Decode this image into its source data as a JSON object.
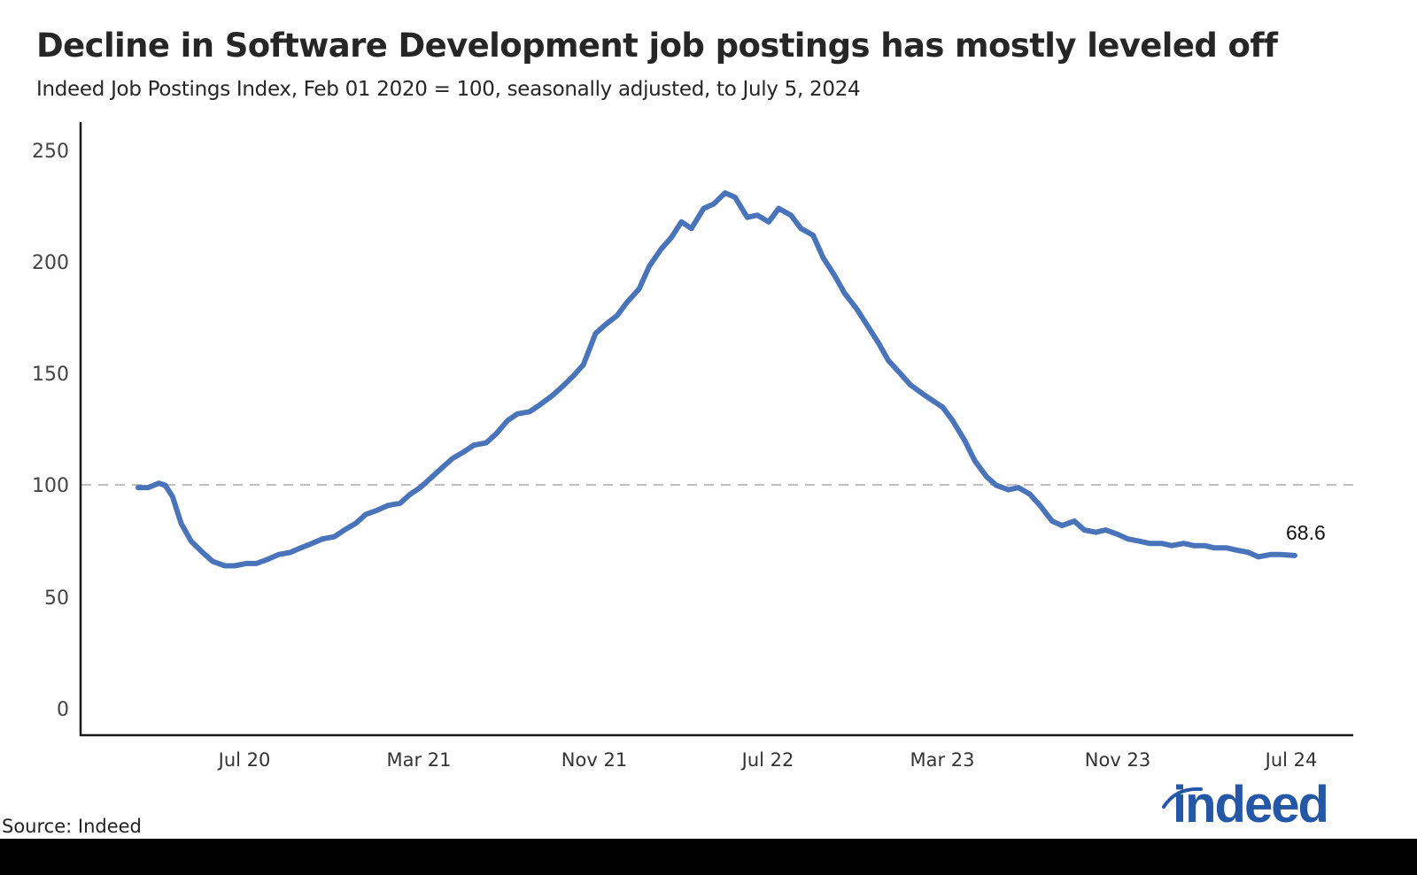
{
  "header": {
    "title": "Decline in Software Development job postings has mostly leveled off",
    "subtitle": "Indeed Job Postings Index, Feb 01 2020 = 100, seasonally adjusted, to July 5, 2024"
  },
  "footer": {
    "source": "Source: Indeed",
    "logo_text": "indeed"
  },
  "colors": {
    "line": "#4a74b9",
    "reference_line": "#c0c0c0",
    "axis": "#1a1a1a",
    "logo": "#2557a7"
  },
  "chart_data": {
    "type": "line",
    "title": "Decline in Software Development job postings has mostly leveled off",
    "subtitle": "Indeed Job Postings Index, Feb 01 2020 = 100, seasonally adjusted, to July 5, 2024",
    "xlabel": "",
    "ylabel": "",
    "ylim": [
      0,
      250
    ],
    "yticks": [
      0,
      50,
      100,
      150,
      200,
      250
    ],
    "xtick_labels": [
      "Jul 20",
      "Mar 21",
      "Nov 21",
      "Jul 22",
      "Mar 23",
      "Nov 23",
      "Jul 24"
    ],
    "grid": false,
    "reference_line": {
      "y": 100,
      "style": "dashed"
    },
    "legend": "none",
    "end_label": "68.6",
    "series": [
      {
        "name": "Software Development",
        "x": [
          "2020-02-01",
          "2020-02-15",
          "2020-03-01",
          "2020-03-10",
          "2020-03-20",
          "2020-04-01",
          "2020-04-15",
          "2020-05-01",
          "2020-05-15",
          "2020-06-01",
          "2020-06-15",
          "2020-07-01",
          "2020-07-15",
          "2020-08-01",
          "2020-08-15",
          "2020-09-01",
          "2020-09-15",
          "2020-10-01",
          "2020-10-15",
          "2020-11-01",
          "2020-11-15",
          "2020-12-01",
          "2020-12-15",
          "2021-01-01",
          "2021-01-15",
          "2021-02-01",
          "2021-02-15",
          "2021-03-01",
          "2021-03-15",
          "2021-04-01",
          "2021-04-15",
          "2021-05-01",
          "2021-05-15",
          "2021-06-01",
          "2021-06-15",
          "2021-07-01",
          "2021-07-15",
          "2021-08-01",
          "2021-08-15",
          "2021-09-01",
          "2021-09-15",
          "2021-10-01",
          "2021-10-15",
          "2021-11-01",
          "2021-11-15",
          "2021-12-01",
          "2021-12-15",
          "2022-01-01",
          "2022-01-15",
          "2022-02-01",
          "2022-02-15",
          "2022-03-01",
          "2022-03-15",
          "2022-04-01",
          "2022-04-15",
          "2022-05-01",
          "2022-05-15",
          "2022-06-01",
          "2022-06-15",
          "2022-07-01",
          "2022-07-15",
          "2022-08-01",
          "2022-08-15",
          "2022-09-01",
          "2022-09-15",
          "2022-10-01",
          "2022-10-15",
          "2022-11-01",
          "2022-11-15",
          "2022-12-01",
          "2022-12-15",
          "2023-01-01",
          "2023-01-15",
          "2023-02-01",
          "2023-02-15",
          "2023-03-01",
          "2023-03-15",
          "2023-04-01",
          "2023-04-15",
          "2023-05-01",
          "2023-05-15",
          "2023-06-01",
          "2023-06-15",
          "2023-07-01",
          "2023-07-15",
          "2023-08-01",
          "2023-08-15",
          "2023-09-01",
          "2023-09-15",
          "2023-10-01",
          "2023-10-15",
          "2023-11-01",
          "2023-11-15",
          "2023-12-01",
          "2023-12-15",
          "2024-01-01",
          "2024-01-15",
          "2024-02-01",
          "2024-02-15",
          "2024-03-01",
          "2024-03-15",
          "2024-04-01",
          "2024-04-15",
          "2024-05-01",
          "2024-05-15",
          "2024-06-01",
          "2024-06-15",
          "2024-07-05"
        ],
        "values": [
          99,
          99,
          101,
          100,
          95,
          83,
          75,
          70,
          66,
          64,
          64,
          65,
          65,
          67,
          69,
          70,
          72,
          74,
          76,
          77,
          80,
          83,
          87,
          89,
          91,
          92,
          96,
          99,
          103,
          108,
          112,
          115,
          118,
          119,
          123,
          129,
          132,
          133,
          136,
          140,
          144,
          149,
          154,
          168,
          172,
          176,
          182,
          188,
          198,
          206,
          211,
          218,
          215,
          224,
          226,
          231,
          229,
          220,
          221,
          218,
          224,
          221,
          215,
          212,
          202,
          194,
          186,
          179,
          172,
          164,
          156,
          150,
          145,
          141,
          138,
          135,
          129,
          120,
          111,
          104,
          100,
          98,
          99,
          96,
          91,
          84,
          82,
          84,
          80,
          79,
          80,
          78,
          76,
          75,
          74,
          74,
          73,
          74,
          73,
          73,
          72,
          72,
          71,
          70,
          68,
          69,
          69,
          68.6
        ]
      }
    ]
  }
}
